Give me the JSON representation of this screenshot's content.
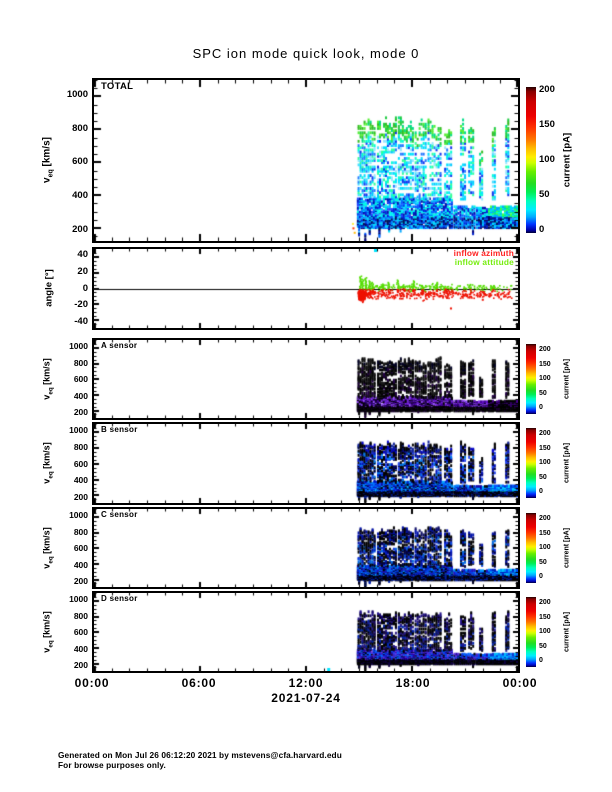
{
  "title": "SPC ion mode quick look, mode 0",
  "footer": {
    "line1": "Generated on Mon Jul 26 06:12:20 2021 by mstevens@cfa.harvard.edu",
    "line2": "For browse purposes only."
  },
  "chart_data": {
    "type": "heatmap",
    "title": "SPC ion mode quick look, mode 0",
    "x_axis": {
      "date": "2021-07-24",
      "tick_labels": [
        "00:00",
        "06:00",
        "12:00",
        "18:00",
        "00:00"
      ],
      "tick_hours": [
        0,
        6,
        12,
        18,
        24
      ],
      "minor_step_hours": 1,
      "range_hours": [
        0,
        24
      ]
    },
    "velocity_axis": {
      "label": "v_eq [km/s]",
      "label_v": "v",
      "label_sub": "eq",
      "label_unit": " [km/s]",
      "ticks": [
        200,
        400,
        600,
        800,
        1000
      ],
      "minor_step": 50
    },
    "angle_axis": {
      "label": "angle [°]",
      "ticks": [
        -40,
        -20,
        0,
        20,
        40
      ],
      "minor_step": 5,
      "range": [
        -50,
        50
      ]
    },
    "colorbar": {
      "label": "current [pA]",
      "ticks": [
        0,
        50,
        100,
        150,
        200
      ],
      "range": [
        0,
        200
      ],
      "gradient": [
        [
          0,
          "#000033"
        ],
        [
          2,
          "#0000aa"
        ],
        [
          6,
          "#0033ff"
        ],
        [
          11,
          "#00aaff"
        ],
        [
          16,
          "#00eeff"
        ],
        [
          22,
          "#00ffbb"
        ],
        [
          28,
          "#00ee55"
        ],
        [
          34,
          "#22dd22"
        ],
        [
          42,
          "#66ee00"
        ],
        [
          48,
          "#ccff00"
        ],
        [
          52,
          "#ffee00"
        ],
        [
          58,
          "#ffbb00"
        ],
        [
          64,
          "#ff7700"
        ],
        [
          72,
          "#ff3300"
        ],
        [
          80,
          "#ee0000"
        ],
        [
          90,
          "#cc0000"
        ],
        [
          97,
          "#880000"
        ],
        [
          100,
          "#220000"
        ]
      ]
    },
    "panels": [
      {
        "id": "total",
        "label": "TOTAL",
        "palettes": {
          "top": [
            "#22cc44",
            "#55ee33",
            "#00dd88",
            "#33bb22"
          ],
          "high": [
            "#00e0ff",
            "#00ffd5",
            "#44ddff",
            "#2277ff",
            "#1133ee",
            "#99e6ff",
            "#00c8ff",
            "#33ff99"
          ],
          "low": [
            "#00bbff",
            "#0066ff",
            "#0022dd",
            "#00eeff",
            "#0011aa",
            "#00ffdd",
            "#2244ff"
          ],
          "floor": [
            "#0022cc",
            "#000077",
            "#0066ff",
            "#00aaff",
            "#001155",
            "#00ddff"
          ],
          "end": [
            "#00ee88",
            "#00d5ff",
            "#44ff44",
            "#00ffcc",
            "#00aaff"
          ]
        }
      },
      {
        "id": "angle",
        "label": "",
        "legend": [
          {
            "label": "inflow azimuth",
            "color": "#ff2222"
          },
          {
            "label": "inflow attitude",
            "color": "#77ee11"
          }
        ],
        "colors": {
          "azimuth": "#ee1100",
          "attitude": "#55dd00"
        }
      },
      {
        "id": "a",
        "label": "A sensor",
        "palettes": {
          "top": [
            "#000000",
            "#111111",
            "#1a1a1a",
            "#000022"
          ],
          "high": [
            "#000000",
            "#0d0d0d",
            "#1a1a1a",
            "#220044",
            "#000000",
            "#000000"
          ],
          "low": [
            "#6611cc",
            "#8833ee",
            "#440099",
            "#000000",
            "#9955ff",
            "#220066",
            "#000000"
          ],
          "floor": [
            "#000000",
            "#0a0a0a",
            "#1c0033",
            "#000000"
          ],
          "end": [
            "#1a0033",
            "#000000",
            "#440088",
            "#000000"
          ]
        }
      },
      {
        "id": "b",
        "label": "B sensor",
        "palettes": {
          "top": [
            "#000000",
            "#0000cc",
            "#112299",
            "#000000"
          ],
          "high": [
            "#000000",
            "#0011bb",
            "#2244ee",
            "#0d0d0d",
            "#0077ee",
            "#000055",
            "#000000"
          ],
          "low": [
            "#0022cc",
            "#0055ff",
            "#00aaff",
            "#000000",
            "#1100aa",
            "#0088ff"
          ],
          "floor": [
            "#000022",
            "#000000",
            "#0022aa",
            "#000000"
          ],
          "end": [
            "#00aaff",
            "#0055ff",
            "#00ddff",
            "#0033cc"
          ]
        }
      },
      {
        "id": "c",
        "label": "C sensor",
        "palettes": {
          "top": [
            "#000000",
            "#0011aa",
            "#101066",
            "#000000"
          ],
          "high": [
            "#000000",
            "#0011aa",
            "#1133dd",
            "#101010",
            "#0066dd",
            "#000044",
            "#000000"
          ],
          "low": [
            "#0022bb",
            "#0044ee",
            "#0099ff",
            "#000000",
            "#2211bb"
          ],
          "floor": [
            "#000022",
            "#000000",
            "#0022aa",
            "#000000"
          ],
          "end": [
            "#0099ff",
            "#0044ee",
            "#00ccff",
            "#0022bb"
          ]
        }
      },
      {
        "id": "d",
        "label": "D sensor",
        "palettes": {
          "top": [
            "#000000",
            "#110066",
            "#000000",
            "#221188"
          ],
          "high": [
            "#000000",
            "#150a40",
            "#2a1a88",
            "#0022aa",
            "#0d0d0d",
            "#000000"
          ],
          "low": [
            "#2200aa",
            "#4422cc",
            "#0044ee",
            "#000000",
            "#6633dd",
            "#0066ff"
          ],
          "floor": [
            "#000011",
            "#000000",
            "#110044",
            "#000000"
          ],
          "end": [
            "#0088ff",
            "#0044dd",
            "#00bbff",
            "#1133cc"
          ]
        }
      }
    ],
    "events": {
      "data_start_hour": 14.9,
      "stripes": [
        {
          "t0": 14.92,
          "t1": 15.9,
          "vtop": 880
        },
        {
          "t0": 16.02,
          "t1": 16.48,
          "vtop": 870
        },
        {
          "t0": 16.58,
          "t1": 17.06,
          "vtop": 880
        },
        {
          "t0": 17.2,
          "t1": 18.0,
          "vtop": 875
        },
        {
          "t0": 18.15,
          "t1": 18.72,
          "vtop": 860
        },
        {
          "t0": 18.88,
          "t1": 19.66,
          "vtop": 880
        },
        {
          "t0": 19.82,
          "t1": 20.18,
          "vtop": 840
        },
        {
          "t0": 20.72,
          "t1": 20.98,
          "vtop": 880
        },
        {
          "t0": 21.18,
          "t1": 21.44,
          "vtop": 850
        },
        {
          "t0": 21.8,
          "t1": 21.96,
          "vtop": 700
        },
        {
          "t0": 22.52,
          "t1": 22.68,
          "vtop": 860
        },
        {
          "t0": 23.28,
          "t1": 23.45,
          "vtop": 880
        }
      ],
      "low_band": [
        {
          "t0": 14.88,
          "t1": 20.3,
          "v1": 390
        },
        {
          "t0": 20.35,
          "t1": 21.5,
          "v1": 345
        },
        {
          "t0": 21.62,
          "t1": 22.2,
          "v1": 335
        },
        {
          "t0": 22.3,
          "t1": 24,
          "v1": 345
        }
      ],
      "drips": [
        {
          "t": 14.95,
          "v": 160
        },
        {
          "t": 15.3,
          "v": 120
        },
        {
          "t": 15.55,
          "v": 170
        },
        {
          "t": 16.1,
          "v": 155
        },
        {
          "t": 16.65,
          "v": 185
        },
        {
          "t": 17.3,
          "v": 180
        },
        {
          "t": 18.3,
          "v": 190
        },
        {
          "t": 21.4,
          "v": 165
        }
      ],
      "warm_dots": [
        {
          "t": 14.6,
          "v": 232,
          "c": "#ffee44"
        },
        {
          "t": 14.63,
          "v": 205,
          "c": "#ff3300"
        },
        {
          "t": 14.7,
          "v": 178,
          "c": "#ffbb00"
        }
      ],
      "stray_marks": [
        {
          "panel": "angle",
          "t": 15.85,
          "edge": "top",
          "color": "#00e5ff"
        },
        {
          "panel": "d",
          "t": 13.2,
          "edge": "bottom",
          "color": "#00e5ff"
        }
      ],
      "angle": {
        "red_mean": -6.5,
        "red_spread": 5.5,
        "green_mean": 1.8,
        "green_spread": 3.8,
        "blob": {
          "t0": 14.92,
          "t1": 15.3,
          "a0": -13,
          "a1": -2,
          "n": 130
        },
        "bands": [
          {
            "t0": 15.3,
            "t1": 20.3,
            "nr": 250,
            "ng": 150
          },
          {
            "t0": 20.35,
            "t1": 21.5,
            "nr": 45,
            "ng": 25
          },
          {
            "t0": 21.6,
            "t1": 22.25,
            "nr": 28,
            "ng": 18
          },
          {
            "t0": 22.3,
            "t1": 23.6,
            "nr": 40,
            "ng": 22
          }
        ],
        "spikes": [
          {
            "t": 15.05,
            "g": 17,
            "r": -15
          },
          {
            "t": 15.18,
            "g": 13,
            "r": -17
          },
          {
            "t": 15.35,
            "g": 15,
            "r": -9
          },
          {
            "t": 15.55,
            "g": 11,
            "r": -8
          },
          {
            "t": 15.72,
            "g": 9,
            "r": -5
          },
          {
            "t": 16.3,
            "g": 7,
            "r": -4
          },
          {
            "t": 16.65,
            "g": 9,
            "r": -5
          },
          {
            "t": 17.15,
            "g": 12,
            "r": -4
          },
          {
            "t": 17.5,
            "g": 6,
            "r": -3
          },
          {
            "t": 18.05,
            "g": 11,
            "r": -3
          },
          {
            "t": 18.55,
            "g": 5,
            "r": -4
          },
          {
            "t": 19.35,
            "g": 9,
            "r": -3
          },
          {
            "t": 19.8,
            "g": 4,
            "r": -3
          },
          {
            "t": 21.25,
            "g": 6,
            "r": -2
          },
          {
            "t": 22.6,
            "g": 5,
            "r": -2
          }
        ],
        "outliers": [
          {
            "t": 20.15,
            "a": -24
          },
          {
            "t": 21.95,
            "a": -13
          },
          {
            "t": 23.15,
            "a": -9
          }
        ]
      }
    }
  }
}
